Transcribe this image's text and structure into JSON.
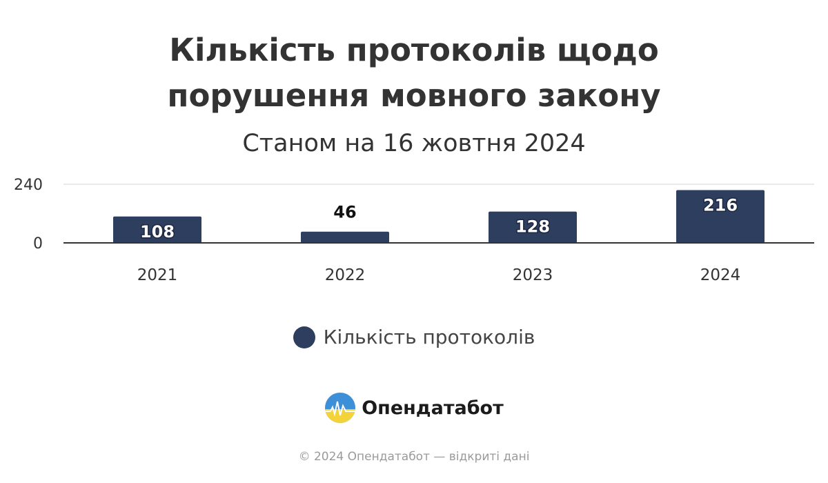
{
  "header": {
    "title_line1": "Кількість протоколів щодо",
    "title_line2": "порушення мовного закону",
    "subtitle": "Станом на 16 жовтня 2024"
  },
  "legend": {
    "label": "Кількість протоколів"
  },
  "brand": {
    "name": "Опендатабот",
    "logo_icon": "opendatabot-logo-icon"
  },
  "footer": {
    "text": "© 2024 Опендатабот — відкриті дані"
  },
  "colors": {
    "bar": "#2e3e5e",
    "title": "#333333",
    "gridline": "#e4e4e4",
    "axis": "#333333"
  },
  "chart_data": {
    "type": "bar",
    "title": "Кількість протоколів щодо порушення мовного закону",
    "subtitle": "Станом на 16 жовтня 2024",
    "categories": [
      "2021",
      "2022",
      "2023",
      "2024"
    ],
    "series": [
      {
        "name": "Кількість протоколів",
        "values": [
          108,
          46,
          128,
          216
        ]
      }
    ],
    "ylim": [
      0,
      240
    ],
    "yticks": [
      "0",
      "240"
    ],
    "grid": true,
    "legend_position": "bottom-center",
    "data_labels": true
  }
}
